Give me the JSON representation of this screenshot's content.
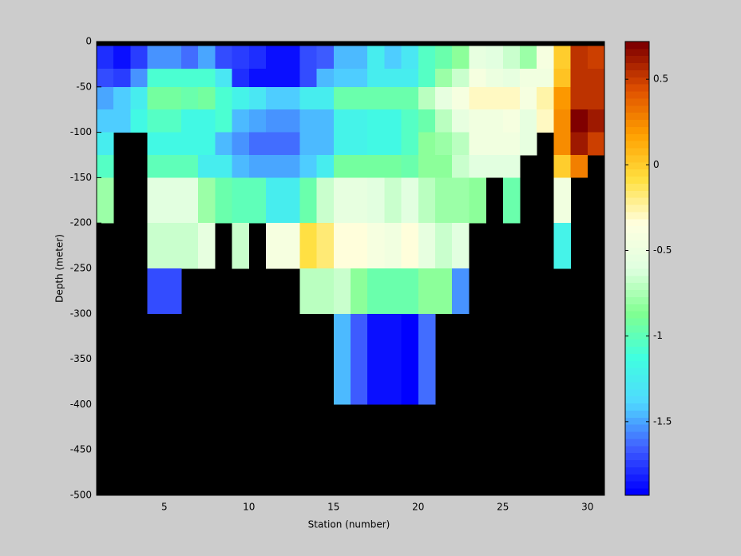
{
  "chart_data": {
    "type": "heatmap",
    "xlabel": "Station (number)",
    "ylabel": "Depth (meter)",
    "x": [
      1,
      2,
      3,
      4,
      5,
      6,
      7,
      8,
      9,
      10,
      11,
      12,
      13,
      14,
      15,
      16,
      17,
      18,
      19,
      20,
      21,
      22,
      23,
      24,
      25,
      26,
      27,
      28,
      29,
      30,
      31
    ],
    "y": [
      0,
      -5,
      -30,
      -50,
      -75,
      -100,
      -125,
      -150,
      -200,
      -250,
      -300,
      -400,
      -500
    ],
    "values": [
      [
        null,
        null,
        null,
        null,
        null,
        null,
        null,
        null,
        null,
        null,
        null,
        null,
        null,
        null,
        null,
        null,
        null,
        null,
        null,
        null,
        null,
        null,
        null,
        null,
        null,
        null,
        null,
        null,
        null,
        null
      ],
      [
        -1.8,
        -1.85,
        -1.75,
        -1.55,
        -1.55,
        -1.6,
        -1.5,
        -1.7,
        -1.75,
        -1.8,
        -1.85,
        -1.85,
        -1.7,
        -1.65,
        -1.45,
        -1.45,
        -1.25,
        -1.4,
        -1.3,
        -1.05,
        -0.95,
        -0.85,
        -0.55,
        -0.6,
        -0.65,
        -0.8,
        -0.4,
        0,
        0.55,
        0.5
      ],
      [
        -1.7,
        -1.75,
        -1.55,
        -1.1,
        -1.1,
        -1.1,
        -1.1,
        -1.3,
        -1.8,
        -1.85,
        -1.85,
        -1.85,
        -1.7,
        -1.45,
        -1.4,
        -1.4,
        -1.25,
        -1.25,
        -1.25,
        -1.05,
        -0.8,
        -0.65,
        -0.4,
        -0.5,
        -0.55,
        -0.45,
        -0.45,
        0.05,
        0.55,
        0.55
      ],
      [
        -1.5,
        -1.4,
        -1.25,
        -0.9,
        -0.9,
        -0.95,
        -0.9,
        -1.1,
        -1.2,
        -1.3,
        -1.4,
        -1.4,
        -1.25,
        -1.25,
        -0.95,
        -0.95,
        -0.95,
        -0.95,
        -0.95,
        -0.7,
        -0.55,
        -0.4,
        -0.3,
        -0.3,
        -0.3,
        -0.4,
        -0.25,
        0.2,
        0.55,
        0.55
      ],
      [
        -1.4,
        -1.4,
        -1.15,
        -1.05,
        -1.05,
        -1.15,
        -1.15,
        -1.1,
        -1.45,
        -1.5,
        -1.55,
        -1.55,
        -1.45,
        -1.45,
        -1.2,
        -1.2,
        -1.15,
        -1.15,
        -1.05,
        -0.95,
        -0.7,
        -0.55,
        -0.45,
        -0.45,
        -0.4,
        -0.55,
        -0.3,
        0.25,
        0.68,
        0.6
      ],
      [
        -1.25,
        null,
        null,
        -1.15,
        -1.15,
        -1.15,
        -1.15,
        -1.45,
        -1.55,
        -1.6,
        -1.6,
        -1.6,
        -1.45,
        -1.45,
        -1.2,
        -1.2,
        -1.15,
        -1.15,
        -1.05,
        -0.85,
        -0.8,
        -0.7,
        -0.45,
        -0.45,
        -0.45,
        -0.55,
        null,
        0.25,
        0.6,
        0.5
      ],
      [
        -1.05,
        null,
        null,
        -1.0,
        -1.0,
        -1.0,
        -1.25,
        -1.25,
        -1.45,
        -1.5,
        -1.5,
        -1.5,
        -1.4,
        -1.25,
        -0.9,
        -0.9,
        -0.9,
        -0.9,
        -0.95,
        -0.85,
        -0.85,
        -0.65,
        -0.6,
        -0.6,
        -0.6,
        null,
        null,
        0,
        0.3,
        null
      ],
      [
        -0.8,
        null,
        null,
        -0.6,
        -0.6,
        -0.6,
        -0.8,
        -0.95,
        -1.0,
        -1.0,
        -1.25,
        -1.25,
        -0.95,
        -0.65,
        -0.55,
        -0.55,
        -0.6,
        -0.65,
        -0.6,
        -0.7,
        -0.8,
        -0.8,
        -0.85,
        null,
        -0.95,
        null,
        null,
        -0.45,
        null,
        null
      ],
      [
        null,
        null,
        null,
        -0.65,
        -0.65,
        -0.65,
        -0.55,
        null,
        -0.65,
        null,
        -0.4,
        -0.4,
        -0.1,
        -0.15,
        -0.35,
        -0.35,
        -0.4,
        -0.45,
        -0.35,
        -0.55,
        -0.65,
        -0.6,
        null,
        null,
        null,
        null,
        null,
        -1.2,
        null,
        null
      ],
      [
        null,
        null,
        null,
        -1.7,
        -1.7,
        null,
        null,
        null,
        null,
        null,
        null,
        null,
        -0.7,
        -0.7,
        -0.65,
        -0.85,
        -0.95,
        -0.95,
        -0.95,
        -0.85,
        -0.85,
        -1.55,
        null,
        null,
        null,
        null,
        null,
        null,
        null,
        null
      ],
      [
        null,
        null,
        null,
        null,
        null,
        null,
        null,
        null,
        null,
        null,
        null,
        null,
        null,
        null,
        -1.45,
        -1.65,
        -1.85,
        -1.85,
        -1.92,
        -1.6,
        null,
        null,
        null,
        null,
        null,
        null,
        null,
        null,
        null,
        null
      ],
      [
        null,
        null,
        null,
        null,
        null,
        null,
        null,
        null,
        null,
        null,
        null,
        null,
        null,
        null,
        null,
        null,
        null,
        null,
        null,
        null,
        null,
        null,
        null,
        null,
        null,
        null,
        null,
        null,
        null,
        null
      ]
    ],
    "xlim": [
      1,
      31
    ],
    "xticks": [
      5,
      10,
      15,
      20,
      25,
      30
    ],
    "ylim": [
      -500,
      0
    ],
    "yticks": [
      0,
      -50,
      -100,
      -150,
      -200,
      -250,
      -300,
      -350,
      -400,
      -450,
      -500
    ],
    "clim": [
      -1.93,
      0.72
    ],
    "cticks": [
      -1.5,
      -1,
      -0.5,
      0,
      0.5
    ],
    "colormap": [
      "#0000ff",
      "#4060ff",
      "#50d8ff",
      "#40ffe0",
      "#80ff90",
      "#e0ffe0",
      "#ffffe0",
      "#ffe040",
      "#ffa000",
      "#e05000",
      "#800000"
    ],
    "colormap_levels": 64,
    "missing_color": "#000000"
  }
}
